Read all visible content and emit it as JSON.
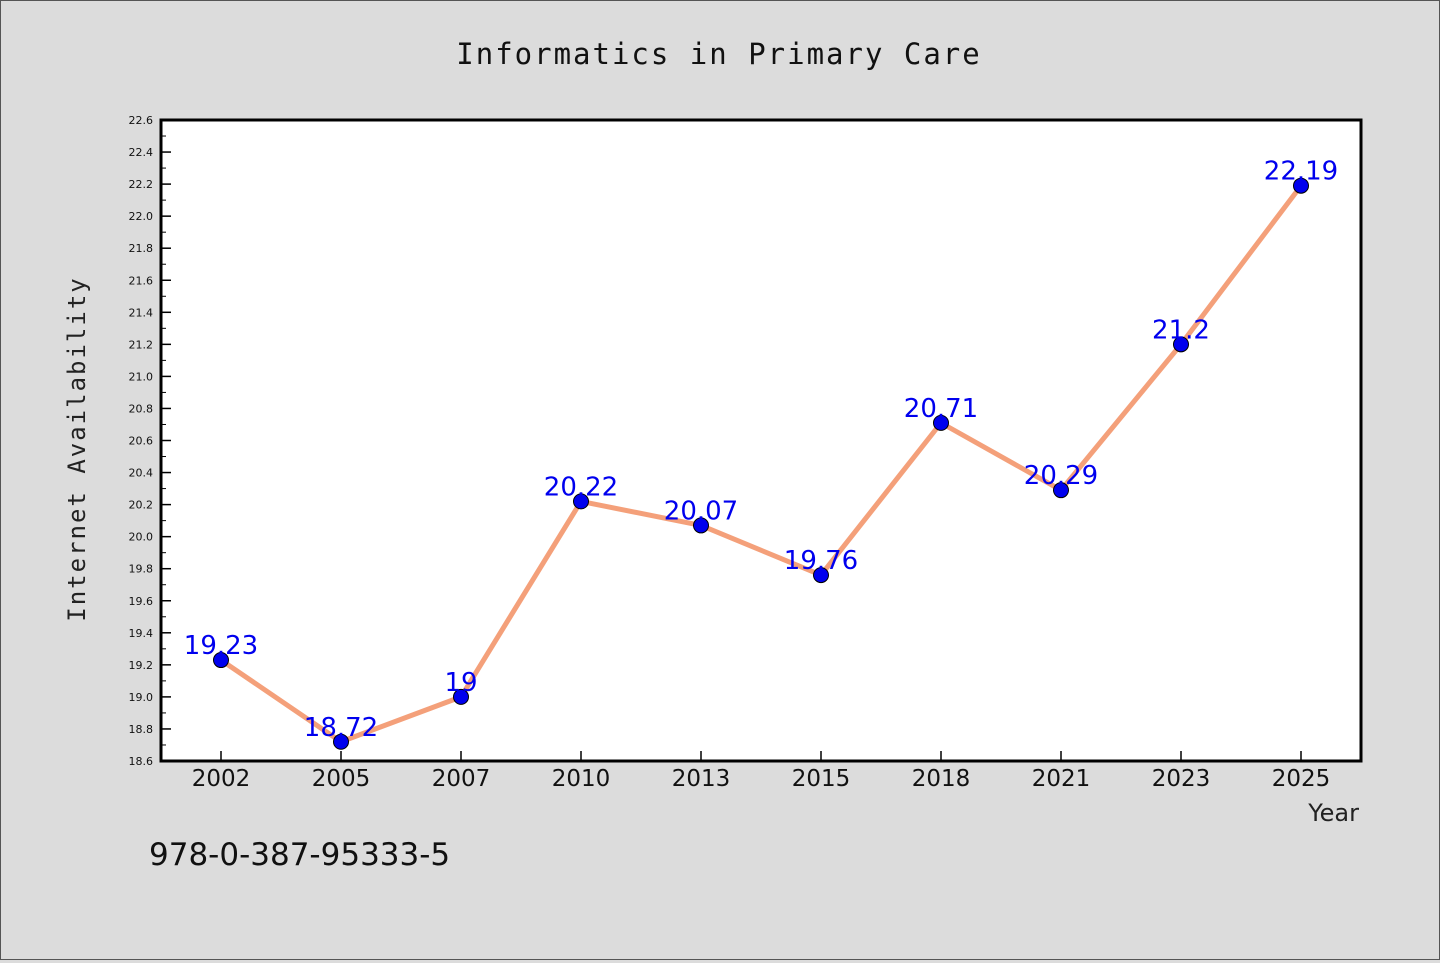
{
  "chart_data": {
    "type": "line",
    "title": "Informatics in Primary Care",
    "xlabel": "Year",
    "ylabel": "Internet Availability",
    "categories": [
      "2002",
      "2005",
      "2007",
      "2010",
      "2013",
      "2015",
      "2018",
      "2021",
      "2023",
      "2025"
    ],
    "series": [
      {
        "values": [
          19.23,
          18.72,
          19.0,
          20.22,
          20.07,
          19.76,
          20.71,
          20.29,
          21.2,
          22.19
        ],
        "data_labels": [
          "19.23",
          "18.72",
          "19",
          "20.22",
          "20.07",
          "19.76",
          "20.71",
          "20.29",
          "21.2",
          "22.19"
        ],
        "line_color": "#f4a07a",
        "marker_color": "#0000ee",
        "label_color": "#0000ee"
      }
    ],
    "ylim": [
      18.6,
      22.6
    ],
    "yticks": [
      "18.6",
      "18.8",
      "19.0",
      "19.2",
      "19.4",
      "19.6",
      "19.8",
      "20.0",
      "20.2",
      "20.4",
      "20.6",
      "20.8",
      "21.0",
      "21.2",
      "21.4",
      "21.6",
      "21.8",
      "22.0",
      "22.2",
      "22.4",
      "22.6"
    ],
    "grid": false,
    "legend": "none"
  },
  "footer": {
    "isbn": "978-0-387-95333-5"
  }
}
